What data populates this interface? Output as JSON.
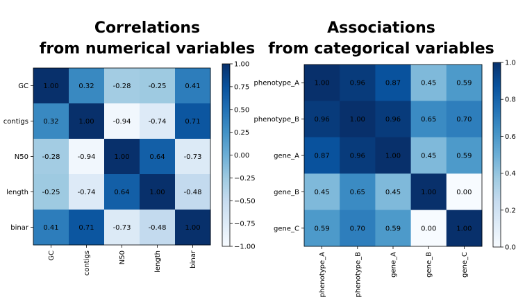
{
  "chart_data": [
    {
      "type": "heatmap",
      "title": [
        "Correlations",
        "from numerical variables"
      ],
      "rows": [
        "GC",
        "contigs",
        "N50",
        "length",
        "binar"
      ],
      "columns": [
        "GC",
        "contigs",
        "N50",
        "length",
        "binar"
      ],
      "values": [
        [
          1.0,
          0.32,
          -0.28,
          -0.25,
          0.41
        ],
        [
          0.32,
          1.0,
          -0.94,
          -0.74,
          0.71
        ],
        [
          -0.28,
          -0.94,
          1.0,
          0.64,
          -0.73
        ],
        [
          -0.25,
          -0.74,
          0.64,
          1.0,
          -0.48
        ],
        [
          0.41,
          0.71,
          -0.73,
          -0.48,
          1.0
        ]
      ],
      "labels": [
        [
          "1.00",
          "0.32",
          "-0.28",
          "-0.25",
          "0.41"
        ],
        [
          "0.32",
          "1.00",
          "-0.94",
          "-0.74",
          "0.71"
        ],
        [
          "-0.28",
          "-0.94",
          "1.00",
          "0.64",
          "-0.73"
        ],
        [
          "-0.25",
          "-0.74",
          "0.64",
          "1.00",
          "-0.48"
        ],
        [
          "0.41",
          "0.71",
          "-0.73",
          "-0.48",
          "1.00"
        ]
      ],
      "vmin": -1.0,
      "vmax": 1.0,
      "colormap": "Blues",
      "colorbar_ticks": [
        -1.0,
        -0.75,
        -0.5,
        -0.25,
        0.0,
        0.25,
        0.5,
        0.75,
        1.0
      ],
      "colorbar_tick_labels": [
        "−1.00",
        "−0.75",
        "−0.50",
        "−0.25",
        "0.00",
        "0.25",
        "0.50",
        "0.75",
        "1.00"
      ]
    },
    {
      "type": "heatmap",
      "title": [
        "Associations",
        "from categorical variables"
      ],
      "rows": [
        "phenotype_A",
        "phenotype_B",
        "gene_A",
        "gene_B",
        "gene_C"
      ],
      "columns": [
        "phenotype_A",
        "phenotype_B",
        "gene_A",
        "gene_B",
        "gene_C"
      ],
      "values": [
        [
          1.0,
          0.96,
          0.87,
          0.45,
          0.59
        ],
        [
          0.96,
          1.0,
          0.96,
          0.65,
          0.7
        ],
        [
          0.87,
          0.96,
          1.0,
          0.45,
          0.59
        ],
        [
          0.45,
          0.65,
          0.45,
          1.0,
          0.0
        ],
        [
          0.59,
          0.7,
          0.59,
          0.0,
          1.0
        ]
      ],
      "labels": [
        [
          "1.00",
          "0.96",
          "0.87",
          "0.45",
          "0.59"
        ],
        [
          "0.96",
          "1.00",
          "0.96",
          "0.65",
          "0.70"
        ],
        [
          "0.87",
          "0.96",
          "1.00",
          "0.45",
          "0.59"
        ],
        [
          "0.45",
          "0.65",
          "0.45",
          "1.00",
          "0.00"
        ],
        [
          "0.59",
          "0.70",
          "0.59",
          "0.00",
          "1.00"
        ]
      ],
      "vmin": 0.0,
      "vmax": 1.0,
      "colormap": "Blues",
      "colorbar_ticks": [
        0.0,
        0.2,
        0.4,
        0.6,
        0.8,
        1.0
      ],
      "colorbar_tick_labels": [
        "0.0",
        "0.2",
        "0.4",
        "0.6",
        "0.8",
        "1.0"
      ]
    }
  ]
}
